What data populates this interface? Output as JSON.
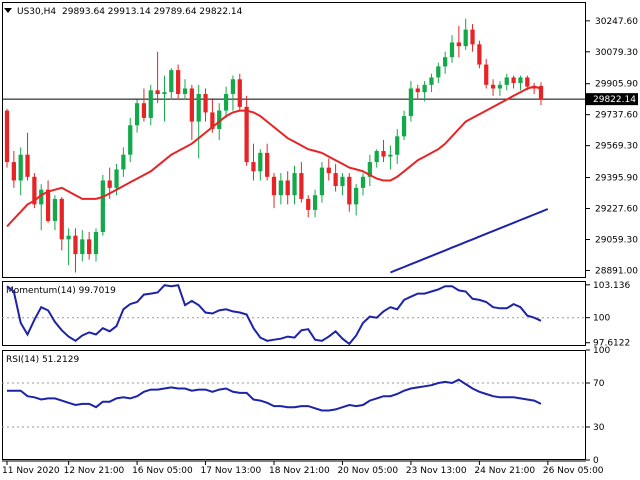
{
  "chart_data": [
    {
      "type": "candlestick",
      "panel": "price",
      "symbol_timeframe": "US30,H4",
      "ohlc_header": "29893.64 29913.14 29789.64 29822.14",
      "ylim": [
        28850,
        30350
      ],
      "y_ticks": [
        "30247.60",
        "30079.30",
        "29905.90",
        "29737.60",
        "29569.30",
        "29395.90",
        "29227.60",
        "29059.30",
        "28891.00"
      ],
      "y_tick_values": [
        30247.6,
        30079.3,
        29905.9,
        29737.6,
        29569.3,
        29395.9,
        29227.6,
        29059.3,
        28891.0
      ],
      "current_price_label": "29822.14",
      "current_price": 29822.14,
      "colors": {
        "up": "#13a84a",
        "down": "#e62426",
        "ma_fast": "#e62426",
        "ma_slow": "#1d23a8"
      },
      "candles": [
        [
          29760,
          29770,
          29450,
          29480
        ],
        [
          29480,
          29540,
          29340,
          29380
        ],
        [
          29380,
          29560,
          29300,
          29520
        ],
        [
          29520,
          29640,
          29380,
          29400
        ],
        [
          29400,
          29420,
          29230,
          29250
        ],
        [
          29250,
          29360,
          29110,
          29330
        ],
        [
          29330,
          29380,
          29150,
          29160
        ],
        [
          29160,
          29300,
          29110,
          29280
        ],
        [
          29280,
          29290,
          29000,
          29060
        ],
        [
          29060,
          29120,
          28920,
          29080
        ],
        [
          29080,
          29120,
          28880,
          28980
        ],
        [
          28980,
          29110,
          28940,
          29060
        ],
        [
          29060,
          29100,
          28950,
          28980
        ],
        [
          28980,
          29120,
          28940,
          29100
        ],
        [
          29100,
          29410,
          29080,
          29380
        ],
        [
          29380,
          29450,
          29280,
          29340
        ],
        [
          29340,
          29470,
          29300,
          29440
        ],
        [
          29440,
          29560,
          29400,
          29520
        ],
        [
          29520,
          29720,
          29480,
          29680
        ],
        [
          29680,
          29820,
          29640,
          29800
        ],
        [
          29800,
          29880,
          29700,
          29720
        ],
        [
          29720,
          29900,
          29680,
          29870
        ],
        [
          29870,
          30080,
          29800,
          29850
        ],
        [
          29850,
          29950,
          29700,
          29860
        ],
        [
          29860,
          29990,
          29820,
          29980
        ],
        [
          29980,
          30010,
          29820,
          29850
        ],
        [
          29850,
          29930,
          29820,
          29880
        ],
        [
          29880,
          29900,
          29600,
          29700
        ],
        [
          29700,
          29900,
          29500,
          29850
        ],
        [
          29850,
          29880,
          29700,
          29750
        ],
        [
          29750,
          29820,
          29640,
          29660
        ],
        [
          29660,
          29800,
          29600,
          29760
        ],
        [
          29760,
          29890,
          29720,
          29850
        ],
        [
          29850,
          29950,
          29760,
          29930
        ],
        [
          29930,
          29960,
          29760,
          29780
        ],
        [
          29780,
          29840,
          29460,
          29480
        ],
        [
          29480,
          29580,
          29380,
          29430
        ],
        [
          29430,
          29550,
          29380,
          29530
        ],
        [
          29530,
          29580,
          29380,
          29400
        ],
        [
          29400,
          29420,
          29230,
          29300
        ],
        [
          29300,
          29420,
          29250,
          29380
        ],
        [
          29380,
          29430,
          29250,
          29300
        ],
        [
          29300,
          29460,
          29250,
          29420
        ],
        [
          29420,
          29480,
          29260,
          29280
        ],
        [
          29280,
          29300,
          29180,
          29220
        ],
        [
          29220,
          29330,
          29180,
          29300
        ],
        [
          29300,
          29480,
          29260,
          29450
        ],
        [
          29450,
          29500,
          29380,
          29420
        ],
        [
          29420,
          29470,
          29320,
          29350
        ],
        [
          29350,
          29420,
          29300,
          29400
        ],
        [
          29400,
          29420,
          29210,
          29250
        ],
        [
          29250,
          29360,
          29190,
          29340
        ],
        [
          29340,
          29420,
          29300,
          29400
        ],
        [
          29400,
          29520,
          29350,
          29480
        ],
        [
          29480,
          29550,
          29450,
          29540
        ],
        [
          29540,
          29600,
          29480,
          29510
        ],
        [
          29510,
          29570,
          29440,
          29520
        ],
        [
          29520,
          29660,
          29470,
          29620
        ],
        [
          29620,
          29760,
          29600,
          29730
        ],
        [
          29730,
          29920,
          29700,
          29880
        ],
        [
          29880,
          29900,
          29820,
          29860
        ],
        [
          29860,
          29920,
          29810,
          29900
        ],
        [
          29900,
          29960,
          29860,
          29940
        ],
        [
          29940,
          30020,
          29910,
          30000
        ],
        [
          30000,
          30080,
          29960,
          30050
        ],
        [
          30050,
          30170,
          30020,
          30130
        ],
        [
          30130,
          30220,
          30050,
          30110
        ],
        [
          30110,
          30260,
          30090,
          30200
        ],
        [
          30200,
          30230,
          30080,
          30120
        ],
        [
          30120,
          30140,
          29990,
          30010
        ],
        [
          30010,
          30040,
          29880,
          29900
        ],
        [
          29900,
          29930,
          29840,
          29880
        ],
        [
          29880,
          29920,
          29840,
          29900
        ],
        [
          29900,
          29960,
          29870,
          29940
        ],
        [
          29940,
          29950,
          29880,
          29910
        ],
        [
          29910,
          29950,
          29870,
          29940
        ],
        [
          29940,
          29950,
          29870,
          29890
        ],
        [
          29890,
          29910,
          29850,
          29880
        ],
        [
          29893.64,
          29913.14,
          29789.64,
          29822.14
        ]
      ],
      "ma_fast": [
        29130,
        29170,
        29210,
        29250,
        29270,
        29300,
        29320,
        29330,
        29340,
        29320,
        29300,
        29280,
        29280,
        29280,
        29290,
        29310,
        29330,
        29350,
        29370,
        29390,
        29410,
        29430,
        29460,
        29490,
        29520,
        29540,
        29560,
        29580,
        29610,
        29640,
        29670,
        29700,
        29730,
        29750,
        29760,
        29760,
        29750,
        29730,
        29700,
        29670,
        29640,
        29610,
        29590,
        29570,
        29550,
        29540,
        29530,
        29510,
        29490,
        29470,
        29450,
        29440,
        29430,
        29410,
        29390,
        29380,
        29380,
        29400,
        29430,
        29460,
        29490,
        29510,
        29530,
        29550,
        29580,
        29620,
        29660,
        29700,
        29720,
        29740,
        29760,
        29780,
        29800,
        29820,
        29840,
        29860,
        29880,
        29890,
        29880
      ],
      "ma_slow_start": 56,
      "ma_slow": [
        28880,
        28895,
        28910,
        28925,
        28940,
        28955,
        28970,
        28985,
        29000,
        29015,
        29030,
        29045,
        29060,
        29075,
        29090,
        29105,
        29120,
        29135,
        29150,
        29165,
        29180,
        29195,
        29210,
        29225
      ]
    },
    {
      "type": "line",
      "panel": "momentum",
      "title": "Momentum(14) 99.7019",
      "ylim": [
        97.3,
        103.5
      ],
      "y_ticks": [
        "103.136",
        "100",
        "97.6122"
      ],
      "y_tick_values": [
        103.136,
        100,
        97.6122
      ],
      "reference_level": 100,
      "color": "#1d23a8",
      "values": [
        103.0,
        102.5,
        99.5,
        98.4,
        99.8,
        101.0,
        100.7,
        99.6,
        98.8,
        98.2,
        97.8,
        98.3,
        98.6,
        98.4,
        99.0,
        98.7,
        99.2,
        100.8,
        101.3,
        101.5,
        102.2,
        102.3,
        102.4,
        103.1,
        103.0,
        103.1,
        101.2,
        101.6,
        101.2,
        100.5,
        100.4,
        100.7,
        100.8,
        100.6,
        100.5,
        100.3,
        99.0,
        98.1,
        97.8,
        97.9,
        98.0,
        98.2,
        98.1,
        98.8,
        98.9,
        97.9,
        97.8,
        98.2,
        98.7,
        98.0,
        97.5,
        98.3,
        99.5,
        100.1,
        100.0,
        100.6,
        101.0,
        100.8,
        101.7,
        102.0,
        102.3,
        102.3,
        102.5,
        102.7,
        103.0,
        103.0,
        102.6,
        102.5,
        101.8,
        101.7,
        101.5,
        101.0,
        100.9,
        100.9,
        101.3,
        101.0,
        100.2,
        100.0,
        99.7
      ]
    },
    {
      "type": "line",
      "panel": "rsi",
      "title": "RSI(14) 51.2129",
      "ylim": [
        0,
        100
      ],
      "y_ticks": [
        "100",
        "70",
        "30",
        "0"
      ],
      "y_tick_values": [
        100,
        70,
        30,
        0
      ],
      "reference_levels": [
        70,
        30
      ],
      "color": "#1d23a8",
      "values": [
        63,
        63,
        63,
        58,
        57,
        55,
        56,
        56,
        54,
        52,
        50,
        51,
        51,
        48,
        53,
        53,
        56,
        57,
        56,
        58,
        62,
        64,
        64,
        65,
        66,
        65,
        65,
        63,
        64,
        64,
        62,
        64,
        65,
        62,
        61,
        61,
        55,
        54,
        52,
        49,
        49,
        48,
        48,
        49,
        49,
        47,
        45,
        45,
        46,
        48,
        50,
        49,
        50,
        54,
        56,
        58,
        58,
        60,
        63,
        65,
        66,
        67,
        68,
        70,
        71,
        70,
        73,
        69,
        65,
        62,
        60,
        58,
        57,
        57,
        57,
        56,
        55,
        54,
        51
      ]
    }
  ],
  "x_axis": {
    "labels": [
      "11 Nov 2020",
      "12 Nov 21:00",
      "16 Nov 05:00",
      "17 Nov 13:00",
      "18 Nov 21:00",
      "20 Nov 05:00",
      "23 Nov 13:00",
      "24 Nov 21:00",
      "26 Nov 05:00"
    ],
    "label_bar_index": [
      0,
      9,
      19,
      29,
      39,
      49,
      59,
      69,
      79
    ]
  }
}
